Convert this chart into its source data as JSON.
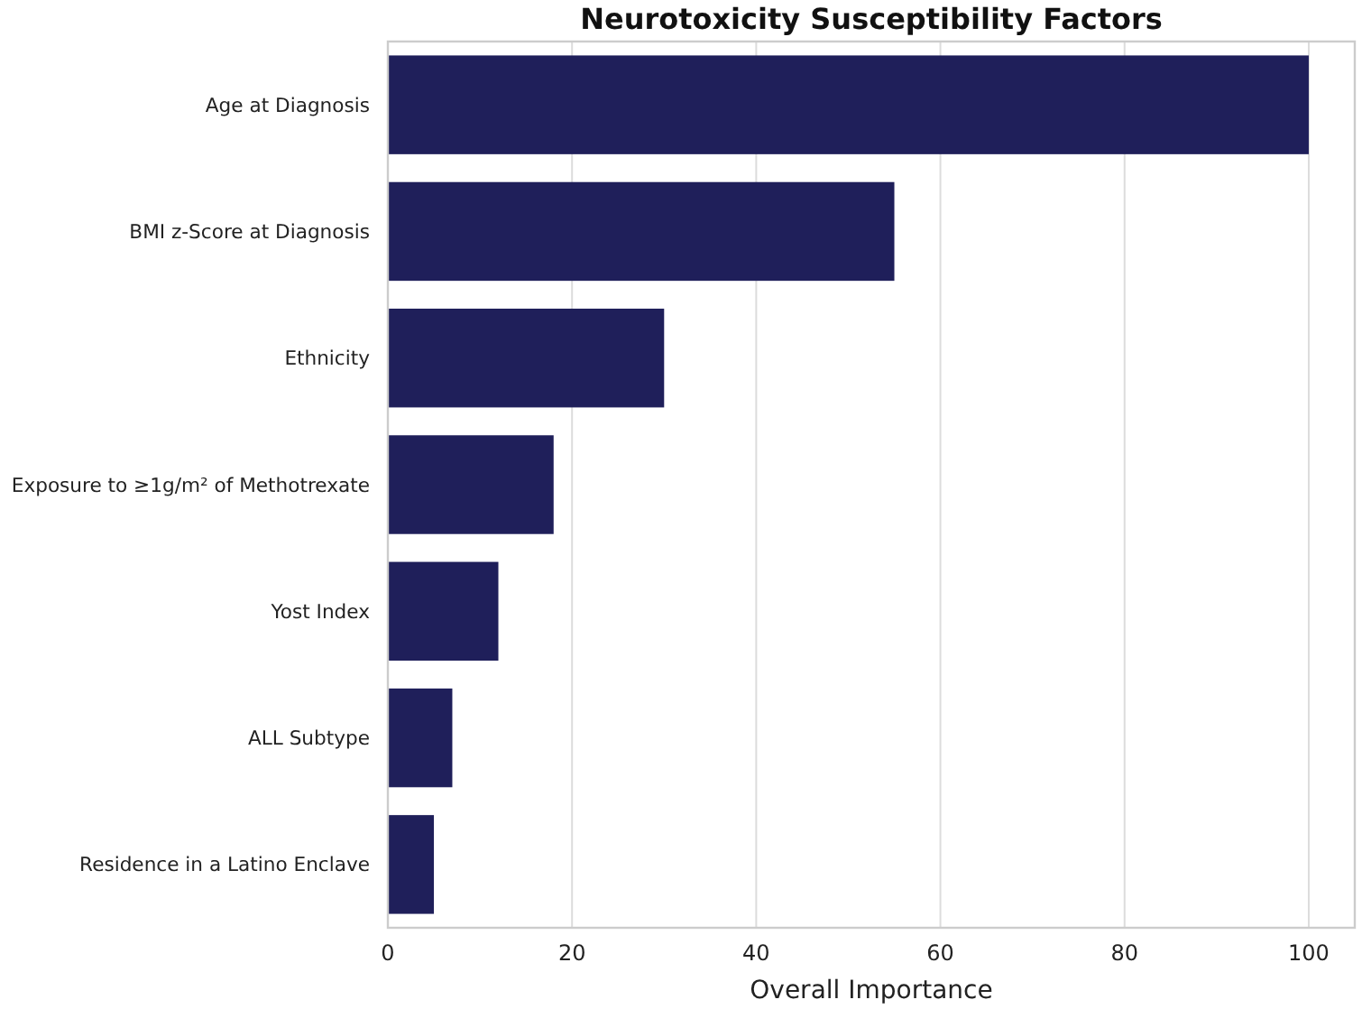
{
  "chart_data": {
    "type": "bar",
    "orientation": "horizontal",
    "title": "Neurotoxicity Susceptibility Factors",
    "xlabel": "Overall Importance",
    "categories": [
      "Age at Diagnosis",
      "BMI z-Score at Diagnosis",
      "Ethnicity",
      "Exposure to ≥1g/m² of Methotrexate",
      "Yost Index",
      "ALL Subtype",
      "Residence in a Latino Enclave"
    ],
    "values": [
      100,
      55,
      30,
      18,
      12,
      7,
      5
    ],
    "color": "#1f1f5a",
    "xlim": [
      0,
      105
    ],
    "xticks": [
      0,
      20,
      40,
      60,
      80,
      100
    ],
    "grid": "x"
  }
}
